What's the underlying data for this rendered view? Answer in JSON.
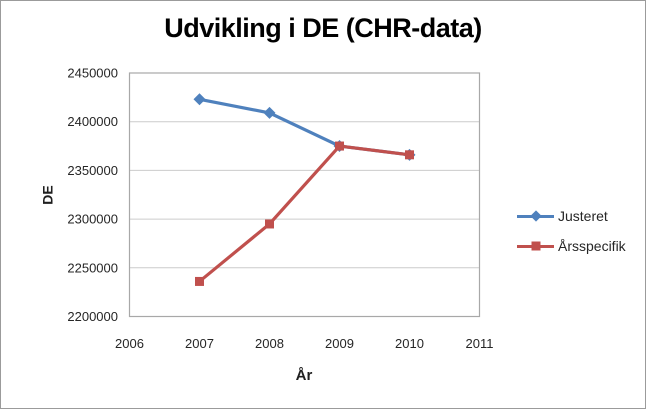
{
  "window": {
    "background": "#ffffff",
    "border_color": "#9b9b9b"
  },
  "chart_data": {
    "type": "line",
    "title": "Udvikling i DE (CHR-data)",
    "xlabel": "År",
    "ylabel": "DE",
    "x": [
      2007,
      2008,
      2009,
      2010
    ],
    "series": [
      {
        "name": "Justeret",
        "color": "#4F81BD",
        "marker": "diamond",
        "values": [
          2423000,
          2409000,
          2375000,
          2366000
        ]
      },
      {
        "name": "Årsspecifik",
        "color": "#C0504D",
        "marker": "square",
        "values": [
          2236000,
          2295000,
          2375000,
          2366000
        ]
      }
    ],
    "xlim": [
      2006,
      2011
    ],
    "ylim": [
      2200000,
      2450000
    ],
    "xticks": [
      2006,
      2007,
      2008,
      2009,
      2010,
      2011
    ],
    "yticks": [
      2200000,
      2250000,
      2300000,
      2350000,
      2400000,
      2450000
    ],
    "grid": "horizontal",
    "gridline_color": "#cccccc",
    "plot_border_color": "#a8a8a8",
    "legend_position": "right",
    "text_color": "#262626"
  }
}
